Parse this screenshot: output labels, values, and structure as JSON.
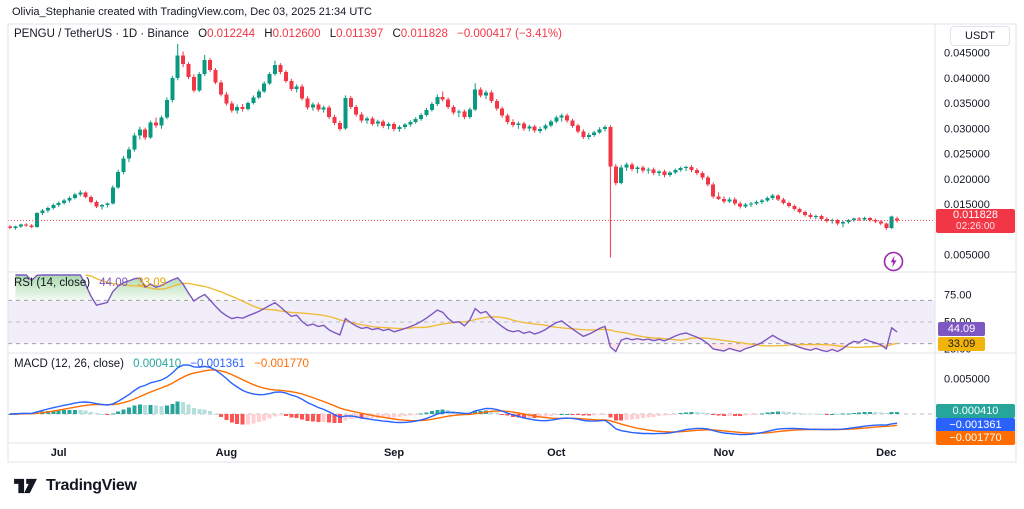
{
  "attribution": "Olivia_Stephanie created with TradingView.com, Dec 03, 2025 21:34 UTC",
  "legend": {
    "symbol": "PENGU / TetherUS · 1D · Binance",
    "o_label": "O",
    "o": "0.012244",
    "h_label": "H",
    "h": "0.012600",
    "l_label": "L",
    "l": "0.011397",
    "c_label": "C",
    "c": "0.011828",
    "change": "−0.000417 (−3.41%)"
  },
  "price_axis": {
    "unit": "USDT",
    "ticks": [
      "0.045000",
      "0.040000",
      "0.035000",
      "0.030000",
      "0.025000",
      "0.020000",
      "0.015000",
      "0.005000"
    ],
    "last_price": "0.011828",
    "countdown": "02:26:00"
  },
  "rsi": {
    "title": "RSI (14, close)",
    "value": "44.09",
    "ma_value": "33.09",
    "ticks": [
      "75.00",
      "50.00",
      "25.00"
    ],
    "levels": [
      70,
      50,
      30
    ],
    "period": 14,
    "ma_period": 14
  },
  "macd": {
    "title": "MACD (12, 26, close)",
    "hist_value": "0.000410",
    "macd_value": "−0.001361",
    "signal_value": "−0.001770",
    "ticks": [
      "0.005000"
    ],
    "fast": 12,
    "slow": 26,
    "signal_period": 9
  },
  "logo": {
    "text": "TradingView"
  },
  "colors": {
    "up": "#089981",
    "down": "#F23645",
    "price_line": "#F23645",
    "rsi_line": "#7E57C2",
    "rsi_ma": "#EFBB3A",
    "rsi_band": "rgba(126,87,194,0.10)",
    "rsi_fill_top": "rgba(76,175,80,0.45)",
    "rsi_fill_bottom": "rgba(76,175,80,0.04)",
    "rsi_under_fill": "rgba(242,54,69,0.12)",
    "macd_line": "#2962FF",
    "signal_line": "#FF6D00",
    "hist_grow_above": "#26A69A",
    "hist_fall_above": "#B2DFDB",
    "hist_grow_below": "#FFCDD2",
    "hist_fall_below": "#FF5252",
    "grid_border": "#E0E3EB",
    "dashed_level": "#9598A1",
    "text": "#131722",
    "flash_icon": "#9C27B0"
  },
  "chart_data": {
    "type": "candlestick",
    "title": "PENGU / TetherUS",
    "interval": "1D",
    "exchange": "Binance",
    "quote_unit": "USDT",
    "ylim": [
      0.005,
      0.05
    ],
    "last_close": 0.011828,
    "months": [
      {
        "label": "Jul",
        "day_index": 9
      },
      {
        "label": "Aug",
        "day_index": 40
      },
      {
        "label": "Sep",
        "day_index": 71
      },
      {
        "label": "Oct",
        "day_index": 101
      },
      {
        "label": "Nov",
        "day_index": 132
      },
      {
        "label": "Dec",
        "day_index": 162
      }
    ],
    "ohlc": [
      [
        0.0106,
        0.0109,
        0.0101,
        0.0103
      ],
      [
        0.0103,
        0.0108,
        0.01,
        0.0106
      ],
      [
        0.0106,
        0.0112,
        0.0104,
        0.011
      ],
      [
        0.011,
        0.0113,
        0.0106,
        0.0108
      ],
      [
        0.0108,
        0.0111,
        0.0103,
        0.0105
      ],
      [
        0.0105,
        0.0135,
        0.0104,
        0.0133
      ],
      [
        0.0133,
        0.0141,
        0.0129,
        0.0138
      ],
      [
        0.0138,
        0.0146,
        0.0134,
        0.0143
      ],
      [
        0.0143,
        0.0152,
        0.014,
        0.0149
      ],
      [
        0.0149,
        0.0156,
        0.0145,
        0.0153
      ],
      [
        0.0153,
        0.0161,
        0.015,
        0.0158
      ],
      [
        0.0158,
        0.0166,
        0.0154,
        0.0163
      ],
      [
        0.0163,
        0.0173,
        0.016,
        0.017
      ],
      [
        0.017,
        0.0178,
        0.0166,
        0.0174
      ],
      [
        0.0174,
        0.0176,
        0.0162,
        0.0165
      ],
      [
        0.0165,
        0.0168,
        0.0152,
        0.0155
      ],
      [
        0.0155,
        0.0158,
        0.0143,
        0.0146
      ],
      [
        0.0146,
        0.0151,
        0.014,
        0.0149
      ],
      [
        0.0149,
        0.0154,
        0.0144,
        0.0152
      ],
      [
        0.0152,
        0.0188,
        0.015,
        0.0184
      ],
      [
        0.0184,
        0.0219,
        0.0181,
        0.0214
      ],
      [
        0.0214,
        0.0246,
        0.021,
        0.0241
      ],
      [
        0.0241,
        0.0264,
        0.0234,
        0.0259
      ],
      [
        0.0259,
        0.0292,
        0.0255,
        0.0287
      ],
      [
        0.0287,
        0.0304,
        0.0279,
        0.0299
      ],
      [
        0.0299,
        0.0302,
        0.0278,
        0.0283
      ],
      [
        0.0283,
        0.0316,
        0.028,
        0.0312
      ],
      [
        0.0312,
        0.0322,
        0.0302,
        0.0306
      ],
      [
        0.0306,
        0.0326,
        0.03,
        0.0322
      ],
      [
        0.0322,
        0.0362,
        0.0319,
        0.0357
      ],
      [
        0.0357,
        0.0405,
        0.0352,
        0.04
      ],
      [
        0.04,
        0.0468,
        0.0396,
        0.0445
      ],
      [
        0.0445,
        0.0453,
        0.0422,
        0.0428
      ],
      [
        0.0428,
        0.0432,
        0.0398,
        0.0402
      ],
      [
        0.0402,
        0.0408,
        0.0372,
        0.0376
      ],
      [
        0.0376,
        0.0412,
        0.0373,
        0.0408
      ],
      [
        0.0408,
        0.0446,
        0.0404,
        0.0436
      ],
      [
        0.0436,
        0.044,
        0.0412,
        0.0416
      ],
      [
        0.0416,
        0.042,
        0.0388,
        0.0392
      ],
      [
        0.0392,
        0.0396,
        0.0364,
        0.0368
      ],
      [
        0.0368,
        0.0373,
        0.0346,
        0.035
      ],
      [
        0.035,
        0.0355,
        0.0332,
        0.0336
      ],
      [
        0.0336,
        0.0348,
        0.033,
        0.0343
      ],
      [
        0.0343,
        0.0349,
        0.0334,
        0.0339
      ],
      [
        0.0339,
        0.0354,
        0.0336,
        0.0351
      ],
      [
        0.0351,
        0.0366,
        0.0348,
        0.0362
      ],
      [
        0.0362,
        0.0378,
        0.0359,
        0.0374
      ],
      [
        0.0374,
        0.0394,
        0.0371,
        0.039
      ],
      [
        0.039,
        0.0412,
        0.0387,
        0.0408
      ],
      [
        0.0408,
        0.0435,
        0.0405,
        0.0426
      ],
      [
        0.0426,
        0.043,
        0.0408,
        0.0412
      ],
      [
        0.0412,
        0.0416,
        0.0391,
        0.0395
      ],
      [
        0.0395,
        0.0399,
        0.0375,
        0.0379
      ],
      [
        0.0379,
        0.0388,
        0.0372,
        0.0384
      ],
      [
        0.0384,
        0.0388,
        0.0356,
        0.036
      ],
      [
        0.036,
        0.0364,
        0.0338,
        0.0342
      ],
      [
        0.0342,
        0.0352,
        0.0336,
        0.0348
      ],
      [
        0.0348,
        0.0352,
        0.0334,
        0.0338
      ],
      [
        0.0338,
        0.0346,
        0.0332,
        0.0342
      ],
      [
        0.0342,
        0.0346,
        0.0319,
        0.0323
      ],
      [
        0.0323,
        0.0328,
        0.0307,
        0.0311
      ],
      [
        0.0311,
        0.0316,
        0.0296,
        0.03
      ],
      [
        0.03,
        0.0366,
        0.0298,
        0.0361
      ],
      [
        0.0361,
        0.0365,
        0.0339,
        0.0343
      ],
      [
        0.0343,
        0.0347,
        0.0324,
        0.0328
      ],
      [
        0.0328,
        0.0333,
        0.0312,
        0.0316
      ],
      [
        0.0316,
        0.0324,
        0.031,
        0.032
      ],
      [
        0.032,
        0.0324,
        0.0306,
        0.031
      ],
      [
        0.031,
        0.0318,
        0.0304,
        0.0314
      ],
      [
        0.0314,
        0.0318,
        0.0301,
        0.0305
      ],
      [
        0.0305,
        0.0313,
        0.0299,
        0.0309
      ],
      [
        0.0309,
        0.0313,
        0.0295,
        0.0299
      ],
      [
        0.0299,
        0.0307,
        0.0294,
        0.0303
      ],
      [
        0.0303,
        0.0311,
        0.0299,
        0.0308
      ],
      [
        0.0308,
        0.0317,
        0.0304,
        0.0313
      ],
      [
        0.0313,
        0.0323,
        0.031,
        0.0319
      ],
      [
        0.0319,
        0.0331,
        0.0316,
        0.0327
      ],
      [
        0.0327,
        0.0341,
        0.0324,
        0.0337
      ],
      [
        0.0337,
        0.0353,
        0.0334,
        0.0349
      ],
      [
        0.0349,
        0.0368,
        0.0345,
        0.0363
      ],
      [
        0.0363,
        0.0374,
        0.0354,
        0.0358
      ],
      [
        0.0358,
        0.0362,
        0.0339,
        0.0343
      ],
      [
        0.0343,
        0.0347,
        0.0328,
        0.0332
      ],
      [
        0.0332,
        0.0338,
        0.0323,
        0.0334
      ],
      [
        0.0334,
        0.0338,
        0.0319,
        0.0323
      ],
      [
        0.0323,
        0.0342,
        0.032,
        0.0338
      ],
      [
        0.0338,
        0.039,
        0.0335,
        0.0378
      ],
      [
        0.0378,
        0.0382,
        0.0362,
        0.0366
      ],
      [
        0.0366,
        0.0376,
        0.0359,
        0.0372
      ],
      [
        0.0372,
        0.0376,
        0.0351,
        0.0355
      ],
      [
        0.0355,
        0.0359,
        0.0336,
        0.034
      ],
      [
        0.034,
        0.0344,
        0.0322,
        0.0326
      ],
      [
        0.0326,
        0.033,
        0.0309,
        0.0313
      ],
      [
        0.0313,
        0.0319,
        0.0303,
        0.0307
      ],
      [
        0.0307,
        0.0314,
        0.03,
        0.031
      ],
      [
        0.031,
        0.0314,
        0.0296,
        0.03
      ],
      [
        0.03,
        0.0308,
        0.0295,
        0.0304
      ],
      [
        0.0304,
        0.0308,
        0.0292,
        0.0296
      ],
      [
        0.0296,
        0.0304,
        0.0291,
        0.03
      ],
      [
        0.03,
        0.031,
        0.0297,
        0.0306
      ],
      [
        0.0306,
        0.0318,
        0.0303,
        0.0314
      ],
      [
        0.0314,
        0.0326,
        0.0311,
        0.0322
      ],
      [
        0.0322,
        0.033,
        0.0314,
        0.0326
      ],
      [
        0.0326,
        0.033,
        0.0312,
        0.0316
      ],
      [
        0.0316,
        0.032,
        0.0302,
        0.0306
      ],
      [
        0.0306,
        0.031,
        0.0291,
        0.0295
      ],
      [
        0.0295,
        0.0299,
        0.028,
        0.0284
      ],
      [
        0.0284,
        0.0292,
        0.0279,
        0.0288
      ],
      [
        0.0288,
        0.0296,
        0.0284,
        0.0293
      ],
      [
        0.0293,
        0.0303,
        0.029,
        0.0299
      ],
      [
        0.0299,
        0.0307,
        0.0295,
        0.0303
      ],
      [
        0.0303,
        0.0307,
        0.0045,
        0.0225
      ],
      [
        0.0225,
        0.023,
        0.0188,
        0.0193
      ],
      [
        0.0193,
        0.0228,
        0.019,
        0.0223
      ],
      [
        0.0223,
        0.0233,
        0.0217,
        0.0229
      ],
      [
        0.0229,
        0.0233,
        0.0216,
        0.022
      ],
      [
        0.022,
        0.0226,
        0.0212,
        0.0223
      ],
      [
        0.0223,
        0.0227,
        0.0213,
        0.0217
      ],
      [
        0.0217,
        0.0223,
        0.0211,
        0.0219
      ],
      [
        0.0219,
        0.0223,
        0.0208,
        0.0212
      ],
      [
        0.0212,
        0.0218,
        0.0206,
        0.0215
      ],
      [
        0.0215,
        0.0219,
        0.0204,
        0.0208
      ],
      [
        0.0208,
        0.0216,
        0.0205,
        0.0213
      ],
      [
        0.0213,
        0.0221,
        0.021,
        0.0218
      ],
      [
        0.0218,
        0.0225,
        0.0215,
        0.0222
      ],
      [
        0.0222,
        0.0227,
        0.0216,
        0.0224
      ],
      [
        0.0224,
        0.0228,
        0.0214,
        0.0218
      ],
      [
        0.0218,
        0.0222,
        0.0208,
        0.0212
      ],
      [
        0.0212,
        0.0216,
        0.0199,
        0.0203
      ],
      [
        0.0203,
        0.0207,
        0.0186,
        0.019
      ],
      [
        0.019,
        0.0194,
        0.0162,
        0.0166
      ],
      [
        0.0166,
        0.0174,
        0.0159,
        0.0161
      ],
      [
        0.0161,
        0.0166,
        0.0152,
        0.0156
      ],
      [
        0.0156,
        0.0164,
        0.0153,
        0.016
      ],
      [
        0.016,
        0.0164,
        0.0148,
        0.0152
      ],
      [
        0.0152,
        0.0156,
        0.0142,
        0.0146
      ],
      [
        0.0146,
        0.0153,
        0.0143,
        0.015
      ],
      [
        0.015,
        0.0155,
        0.0145,
        0.0152
      ],
      [
        0.0152,
        0.0158,
        0.0149,
        0.0155
      ],
      [
        0.0155,
        0.0161,
        0.0151,
        0.0158
      ],
      [
        0.0158,
        0.0166,
        0.0155,
        0.0163
      ],
      [
        0.0163,
        0.0171,
        0.0159,
        0.0168
      ],
      [
        0.0168,
        0.017,
        0.0157,
        0.016
      ],
      [
        0.016,
        0.0163,
        0.015,
        0.0153
      ],
      [
        0.0153,
        0.0156,
        0.0144,
        0.0147
      ],
      [
        0.0147,
        0.015,
        0.0138,
        0.0141
      ],
      [
        0.0141,
        0.0144,
        0.0132,
        0.0135
      ],
      [
        0.0135,
        0.0138,
        0.0126,
        0.0129
      ],
      [
        0.0129,
        0.0133,
        0.0122,
        0.0125
      ],
      [
        0.0125,
        0.013,
        0.0121,
        0.0127
      ],
      [
        0.0127,
        0.013,
        0.0118,
        0.0121
      ],
      [
        0.0121,
        0.0125,
        0.0114,
        0.0117
      ],
      [
        0.0117,
        0.0122,
        0.0112,
        0.0119
      ],
      [
        0.0119,
        0.0121,
        0.0109,
        0.0112
      ],
      [
        0.0112,
        0.0118,
        0.0105,
        0.0115
      ],
      [
        0.0115,
        0.0121,
        0.0112,
        0.0119
      ],
      [
        0.0119,
        0.0124,
        0.0116,
        0.0122
      ],
      [
        0.0122,
        0.0125,
        0.0117,
        0.012
      ],
      [
        0.012,
        0.0126,
        0.0118,
        0.0123
      ],
      [
        0.0123,
        0.0125,
        0.0116,
        0.0119
      ],
      [
        0.0119,
        0.0122,
        0.0113,
        0.0116
      ],
      [
        0.0116,
        0.0119,
        0.0109,
        0.0112
      ],
      [
        0.0112,
        0.0114,
        0.01,
        0.0103
      ],
      [
        0.0103,
        0.0128,
        0.0101,
        0.0126
      ],
      [
        0.012244,
        0.0126,
        0.011397,
        0.011828
      ]
    ]
  }
}
